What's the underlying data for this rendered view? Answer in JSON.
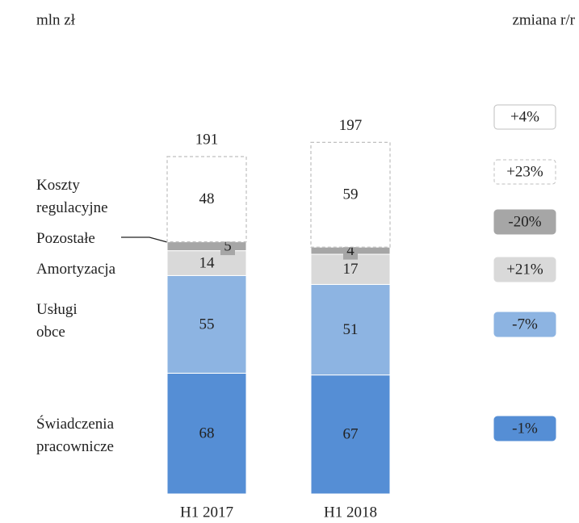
{
  "chart_data": {
    "type": "stacked-bar",
    "unit_label": "mln zł",
    "change_label": "zmiana r/r",
    "categories": [
      "H1 2017",
      "H1 2018"
    ],
    "totals": [
      191,
      197
    ],
    "total_change": "+4%",
    "series": [
      {
        "name": "Świadczenia pracownicze",
        "color": "#558ed5",
        "values": [
          68,
          67
        ],
        "change": "-1%"
      },
      {
        "name": "Usługi obce",
        "color": "#8db4e2",
        "values": [
          55,
          51
        ],
        "change": "-7%"
      },
      {
        "name": "Amortyzacja",
        "color": "#d9d9d9",
        "values": [
          14,
          17
        ],
        "change": "+21%"
      },
      {
        "name": "Pozostałe",
        "color": "#a6a6a6",
        "values": [
          5,
          4
        ],
        "change": "-20%"
      },
      {
        "name": "Koszty regulacyjne",
        "color": "#ffffff",
        "values": [
          48,
          59
        ],
        "change": "+23%"
      }
    ]
  }
}
